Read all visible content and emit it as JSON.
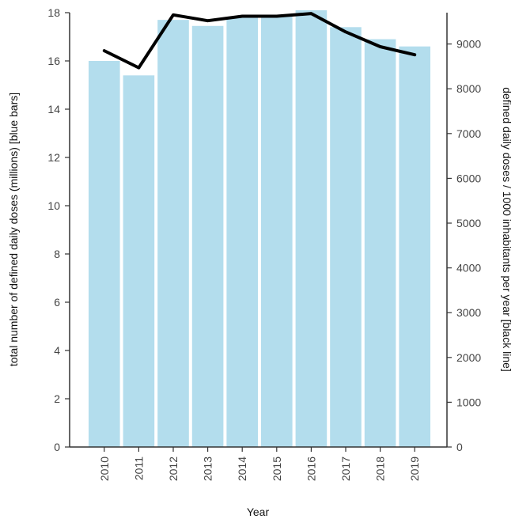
{
  "chart_data": {
    "type": "bar",
    "categories": [
      "2010",
      "2011",
      "2012",
      "2013",
      "2014",
      "2015",
      "2016",
      "2017",
      "2018",
      "2019"
    ],
    "series": [
      {
        "kind": "bar",
        "axis": "left",
        "color": "#b3dded",
        "values": [
          16.0,
          15.4,
          17.7,
          17.45,
          17.8,
          17.9,
          18.1,
          17.4,
          16.9,
          16.6
        ]
      },
      {
        "kind": "line",
        "axis": "right",
        "color": "#000000",
        "values": [
          8850,
          8470,
          9650,
          9520,
          9620,
          9620,
          9680,
          9270,
          8940,
          8760
        ]
      }
    ],
    "xlabel": "Year",
    "ylabel": "total number of defined daily doses (millions) [blue bars]",
    "ylabel_right": "defined daily doses / 1000 inhabitants per year [black line]",
    "ylim": [
      0,
      18
    ],
    "ylim_right": [
      0,
      9700
    ],
    "yticks": [
      0,
      2,
      4,
      6,
      8,
      10,
      12,
      14,
      16,
      18
    ],
    "yticks_right": [
      0,
      1000,
      2000,
      3000,
      4000,
      5000,
      6000,
      7000,
      8000,
      9000
    ],
    "grid": false,
    "legend": "none"
  }
}
